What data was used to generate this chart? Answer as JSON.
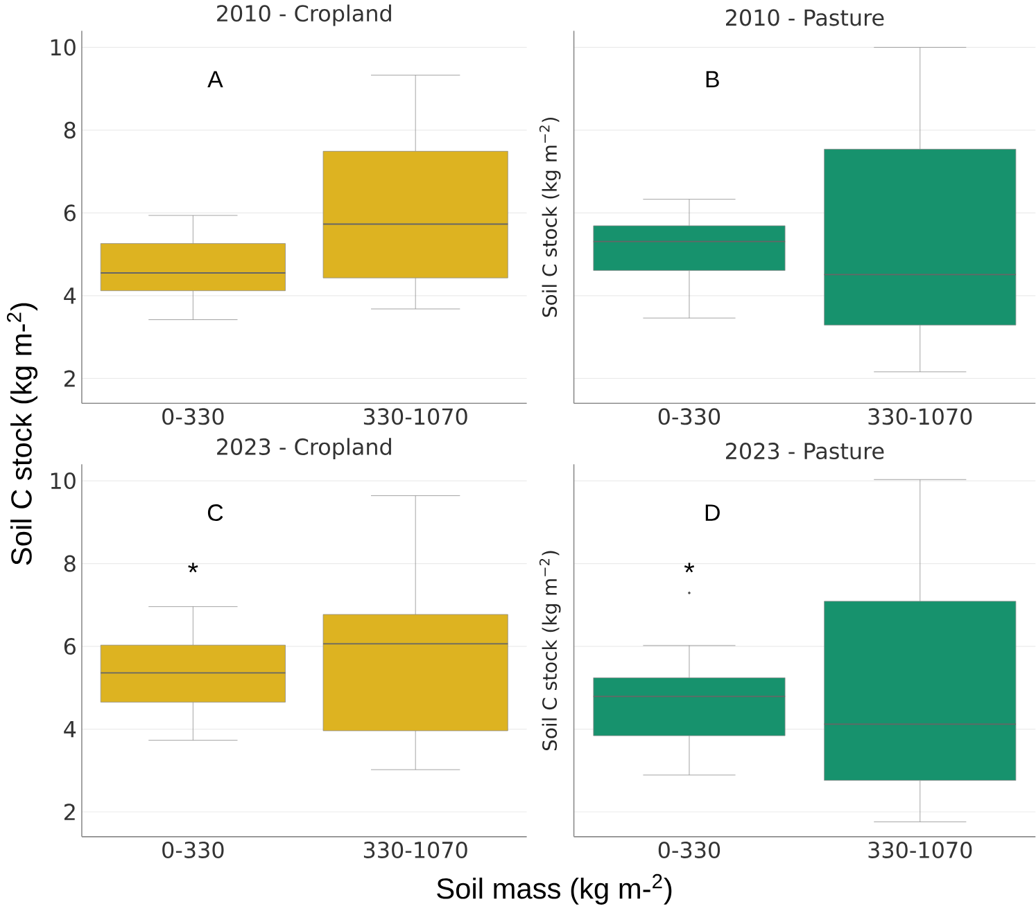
{
  "chart_data": [
    {
      "type": "box",
      "title": "2010 - Cropland",
      "ylabel": "Soil C stock (kg m-$^{2}$)",
      "categories": [
        "0-330",
        "330-1070"
      ],
      "ylim": [
        1.4,
        10.4
      ],
      "yticks": [
        2,
        4,
        6,
        8,
        10
      ],
      "grid": "y",
      "annotations": [
        "A"
      ],
      "series": [
        {
          "color": "#ddb321",
          "boxes": [
            {
              "low": 3.42,
              "q1": 4.12,
              "median": 4.55,
              "q3": 5.26,
              "high": 5.94
            },
            {
              "low": 3.68,
              "q1": 4.43,
              "median": 5.73,
              "q3": 7.49,
              "high": 9.33
            }
          ]
        }
      ]
    },
    {
      "type": "box",
      "title": "2010 - Pasture",
      "ylabel": "Soil C stock (kg m$^{−2}$)",
      "categories": [
        "0-330",
        "330-1070"
      ],
      "ylim": [
        1.4,
        10.4
      ],
      "yticks": [
        2,
        4,
        6,
        8,
        10
      ],
      "grid": "y",
      "tick_labels": "x",
      "annotations": [
        "B"
      ],
      "series": [
        {
          "color": "#17926d",
          "boxes": [
            {
              "low": 3.46,
              "q1": 4.61,
              "median": 5.31,
              "q3": 5.69,
              "high": 6.33
            },
            {
              "low": 2.16,
              "q1": 3.29,
              "median": 4.51,
              "q3": 7.54,
              "high": 10.0
            }
          ]
        }
      ]
    },
    {
      "type": "box",
      "title": "2023 - Cropland",
      "xlabel": "Soil mass (kg m-$^{2}$)",
      "categories": [
        "0-330",
        "330-1070"
      ],
      "ylim": [
        1.4,
        10.4
      ],
      "yticks": [
        2,
        4,
        6,
        8,
        10
      ],
      "grid": "y",
      "annotations": [
        "C",
        "*"
      ],
      "series": [
        {
          "color": "#ddb321",
          "boxes": [
            {
              "low": 3.73,
              "q1": 4.65,
              "median": 5.36,
              "q3": 6.03,
              "high": 6.96
            },
            {
              "low": 3.02,
              "q1": 3.96,
              "median": 6.06,
              "q3": 6.77,
              "high": 9.64
            }
          ]
        }
      ]
    },
    {
      "type": "box",
      "title": "2023 - Pasture",
      "ylabel": "Soil C stock (kg m$^{−2}$)",
      "categories": [
        "0-330",
        "330-1070"
      ],
      "ylim": [
        1.4,
        10.4
      ],
      "yticks": [
        2,
        4,
        6,
        8,
        10
      ],
      "grid": "y",
      "tick_labels": "x",
      "annotations": [
        "D",
        "*"
      ],
      "series": [
        {
          "color": "#17926d",
          "boxes": [
            {
              "low": 2.89,
              "q1": 3.84,
              "median": 4.79,
              "q3": 5.24,
              "high": 6.02,
              "outliers": [
                7.29
              ]
            },
            {
              "low": 1.76,
              "q1": 2.76,
              "median": 4.12,
              "q3": 7.09,
              "high": 10.03
            }
          ]
        }
      ]
    }
  ]
}
